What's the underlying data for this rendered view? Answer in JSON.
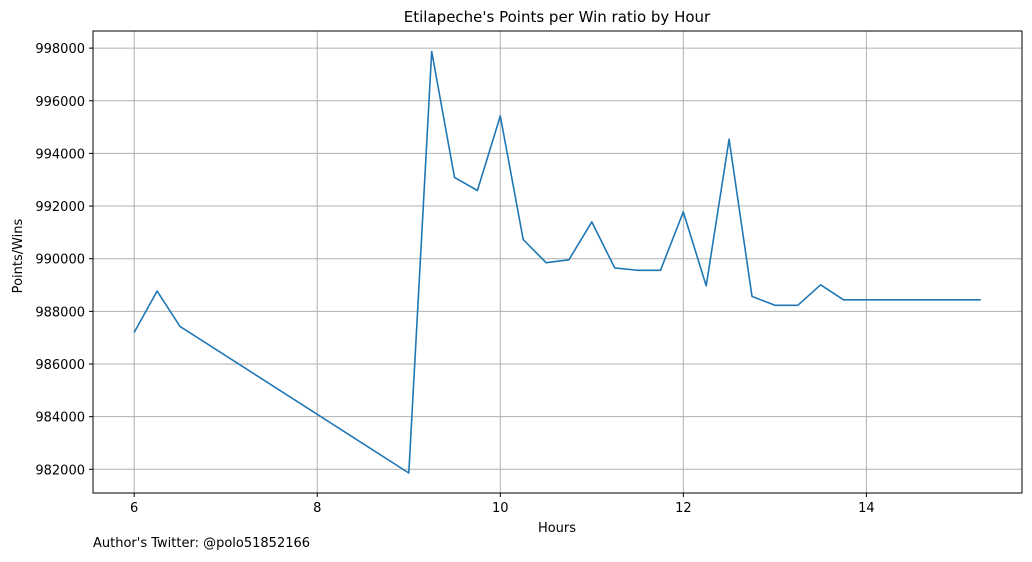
{
  "chart_data": {
    "type": "line",
    "title": "Etilapeche's Points per Win ratio by Hour",
    "xlabel": "Hours",
    "ylabel": "Points/Wins",
    "xlim": [
      5.55,
      15.7
    ],
    "ylim": [
      981100,
      998650
    ],
    "xticks": [
      6,
      8,
      10,
      12,
      14
    ],
    "yticks": [
      982000,
      984000,
      986000,
      988000,
      990000,
      992000,
      994000,
      996000,
      998000
    ],
    "grid": true,
    "series": [
      {
        "color": "#1f77b4",
        "x": [
          6,
          6.25,
          6.5,
          9,
          9.25,
          9.5,
          9.75,
          10,
          10.25,
          10.5,
          10.75,
          11,
          11.25,
          11.5,
          11.75,
          12,
          12.25,
          12.5,
          12.75,
          13,
          13.25,
          13.5,
          13.75,
          14,
          14.25,
          14.5,
          14.75,
          15,
          15.25
        ],
        "y": [
          987200,
          988770,
          987430,
          981860,
          997870,
          993090,
          992590,
          995420,
          990730,
          989850,
          989960,
          991400,
          989650,
          989560,
          989560,
          991780,
          988970,
          994540,
          988570,
          988230,
          988230,
          989010,
          988440,
          988440,
          988440,
          988440,
          988440,
          988440,
          988440
        ]
      }
    ]
  },
  "footer": {
    "text": "Author's Twitter: @polo51852166"
  }
}
